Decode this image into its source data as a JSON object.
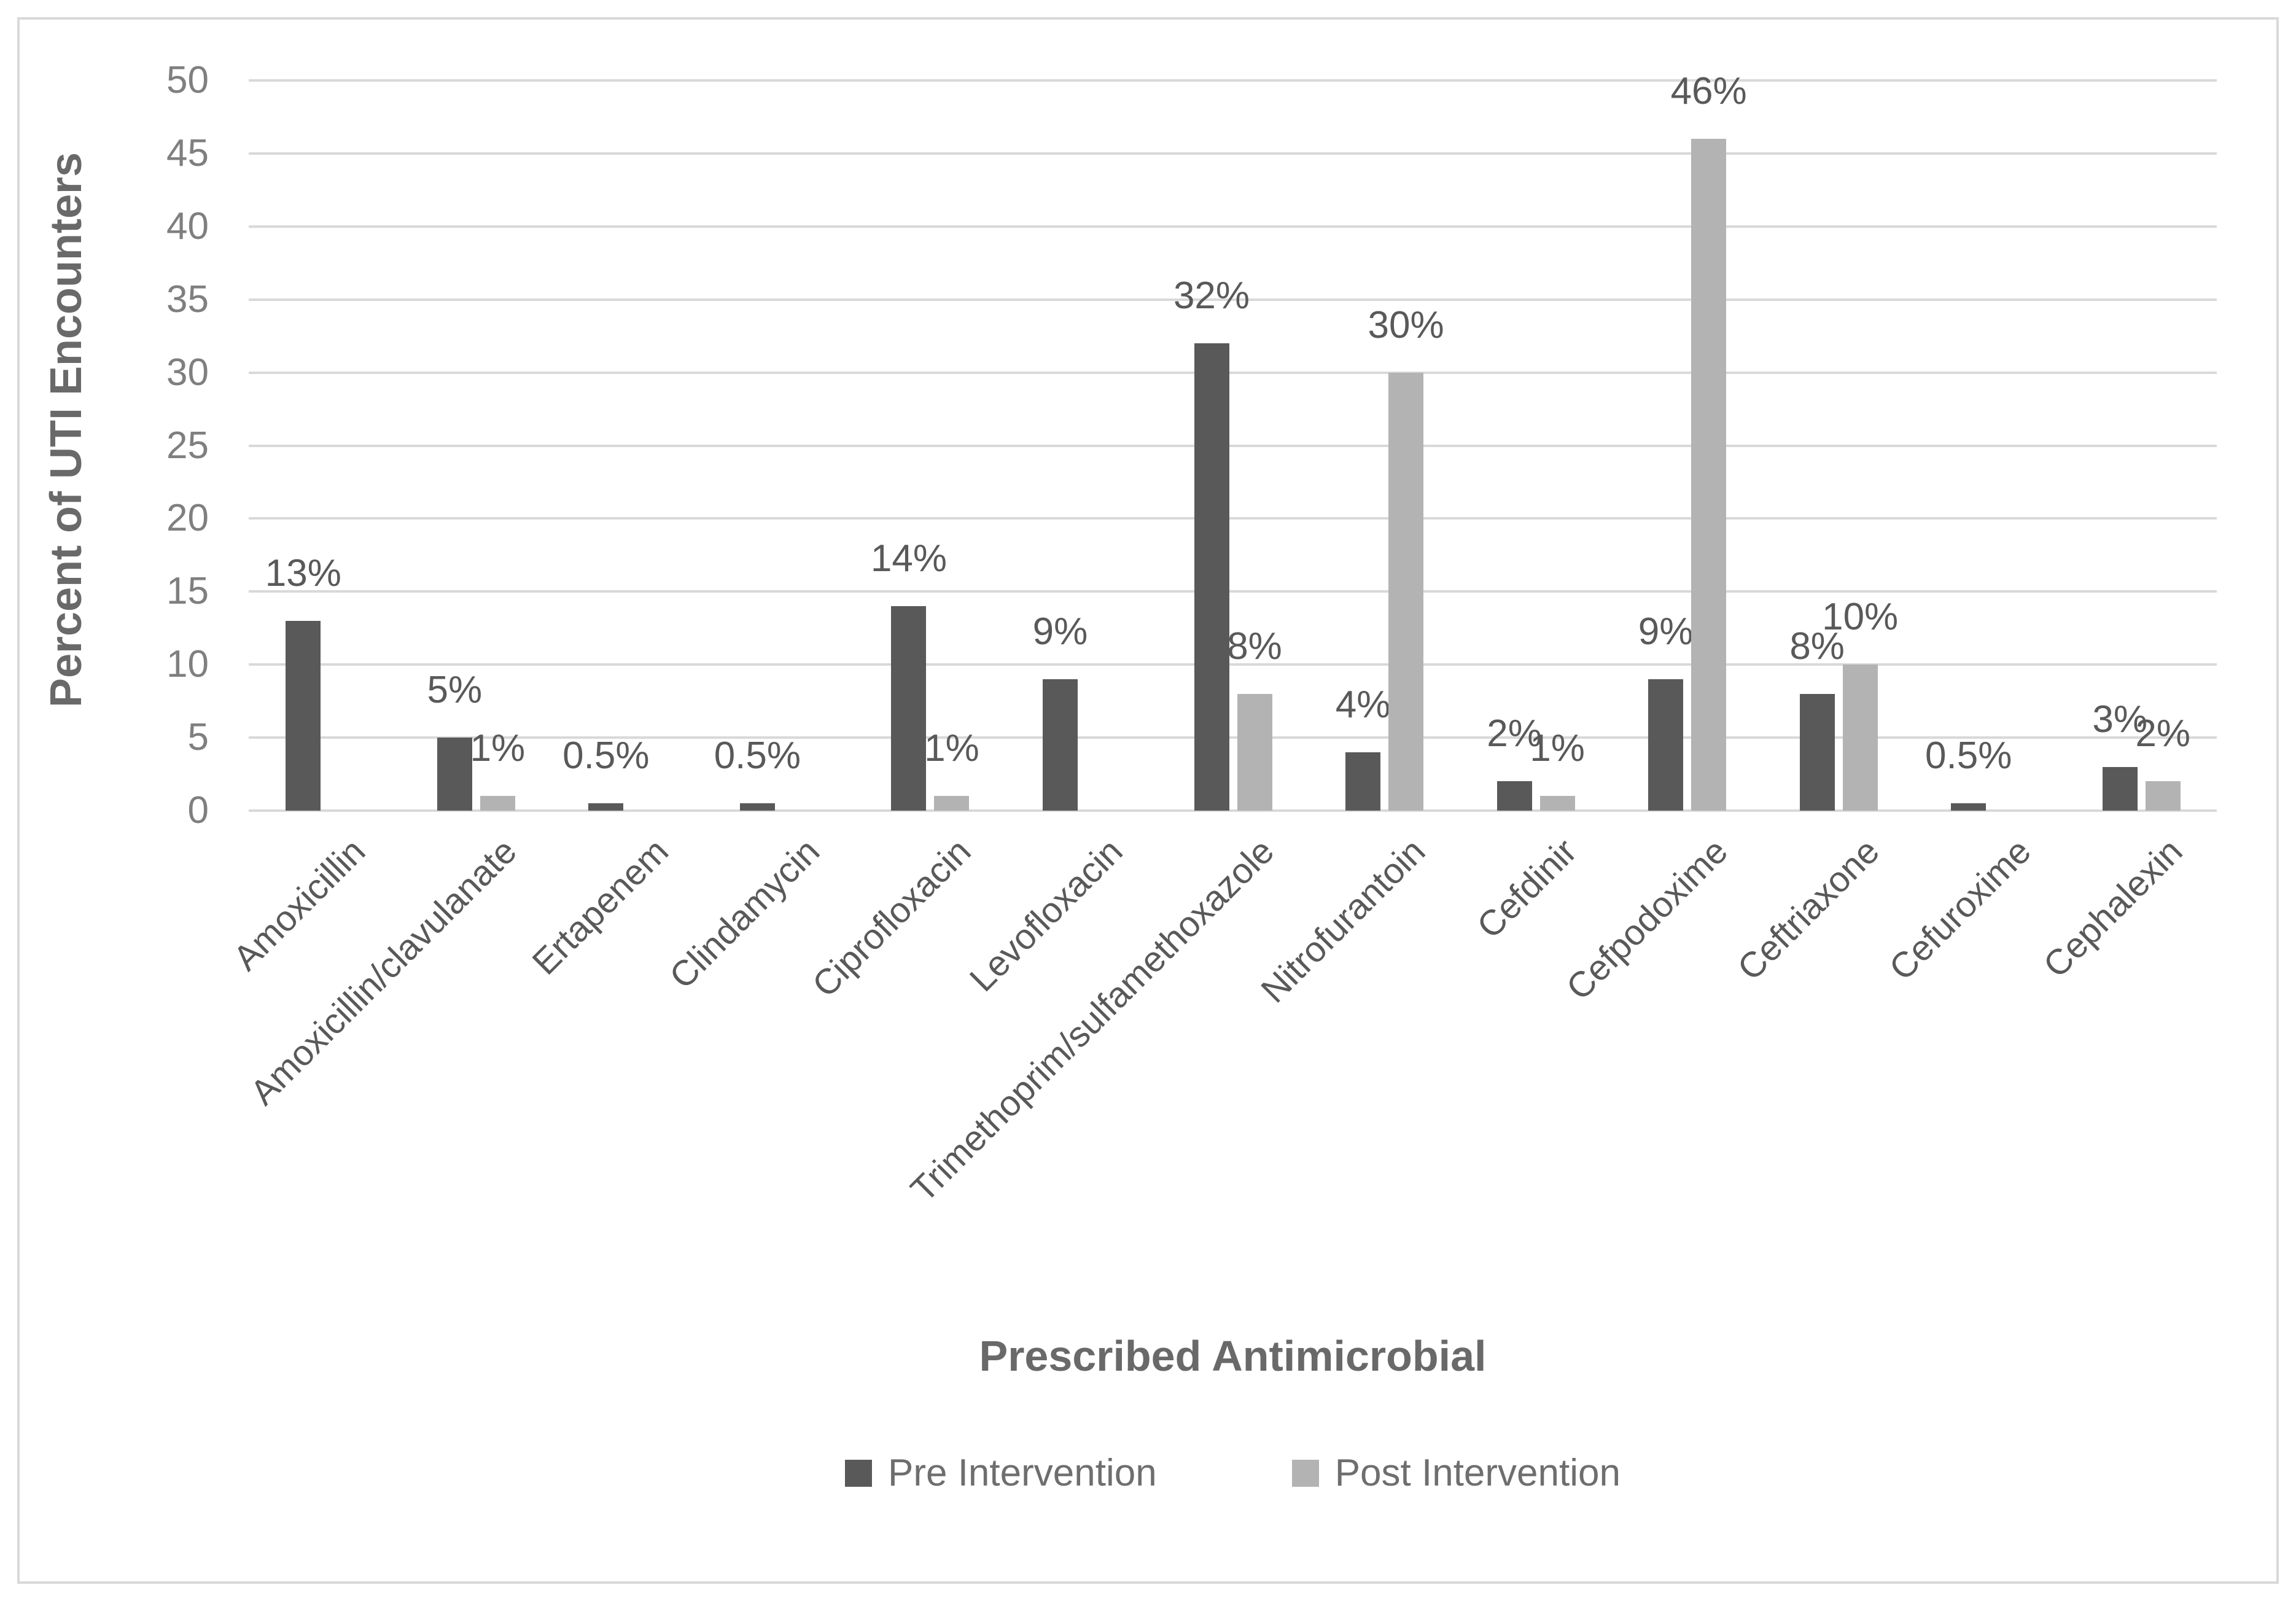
{
  "chart_data": {
    "type": "bar",
    "title": "",
    "ylabel": "Percent of UTI Encounters",
    "xlabel": "Prescribed Antimicrobial",
    "ylim": [
      0,
      50
    ],
    "ytick_step": 5,
    "yticks": [
      0,
      5,
      10,
      15,
      20,
      25,
      30,
      35,
      40,
      45,
      50
    ],
    "grid": true,
    "legend_position": "bottom-center",
    "categories": [
      "Amoxicillin",
      "Amoxicillin/clavulanate",
      "Ertapenem",
      "Clindamycin",
      "Ciprofloxacin",
      "Levofloxacin",
      "Trimethoprim/sulfamethoxazole",
      "Nitrofurantoin",
      "Cefdinir",
      "Cefpodoxime",
      "Ceftriaxone",
      "Cefuroxime",
      "Cephalexin"
    ],
    "series": [
      {
        "name": "Pre Intervention",
        "color": "#595959",
        "values": [
          13,
          5,
          0.5,
          0.5,
          14,
          9,
          32,
          4,
          2,
          9,
          8,
          0.5,
          3
        ],
        "data_labels": [
          "13%",
          "5%",
          "0.5%",
          "0.5%",
          "14%",
          "9%",
          "32%",
          "4%",
          "2%",
          "9%",
          "8%",
          "0.5%",
          "3%"
        ]
      },
      {
        "name": "Post Intervention",
        "color": "#b3b3b3",
        "values": [
          0,
          1,
          0,
          0,
          1,
          0,
          8,
          30,
          1,
          46,
          10,
          0,
          2
        ],
        "data_labels": [
          "",
          "1%",
          "",
          "",
          "1%",
          "",
          "8%",
          "30%",
          "1%",
          "46%",
          "10%",
          "",
          "2%"
        ]
      }
    ]
  },
  "colors": {
    "background": "#ffffff",
    "frame_border": "#d9d9d9",
    "gridline": "#d9d9d9",
    "tick_text": "#7f7f7f",
    "axis_title_text": "#696969",
    "data_label_text": "#595959",
    "category_label_text": "#595959",
    "legend_text": "#6e6e6e"
  }
}
